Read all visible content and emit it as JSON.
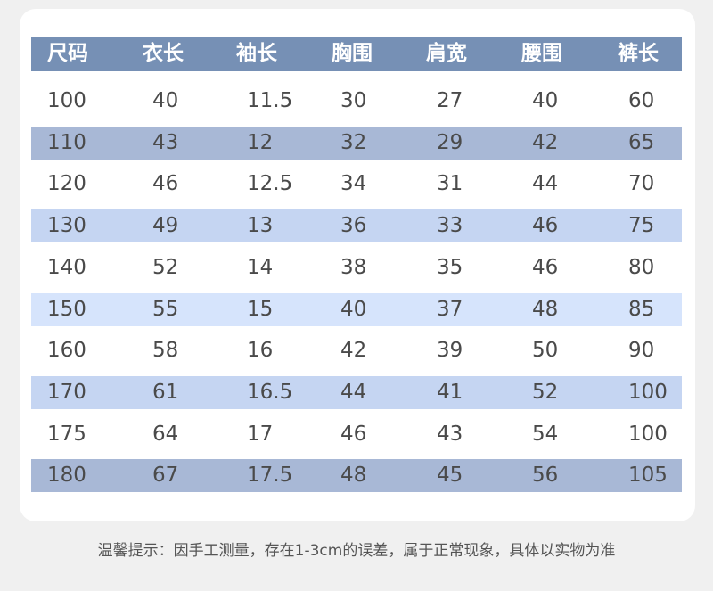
{
  "headers": [
    "尺码",
    "衣长",
    "袖长",
    "胸围",
    "肩宽",
    "腰围",
    "裤长"
  ],
  "rows": [
    [
      "100",
      "40",
      "11.5",
      "30",
      "27",
      "40",
      "60"
    ],
    [
      "110",
      "43",
      "12",
      "32",
      "29",
      "42",
      "65"
    ],
    [
      "120",
      "46",
      "12.5",
      "34",
      "31",
      "44",
      "70"
    ],
    [
      "130",
      "49",
      "13",
      "36",
      "33",
      "46",
      "75"
    ],
    [
      "140",
      "52",
      "14",
      "38",
      "35",
      "46",
      "80"
    ],
    [
      "150",
      "55",
      "15",
      "40",
      "37",
      "48",
      "85"
    ],
    [
      "160",
      "58",
      "16",
      "42",
      "39",
      "50",
      "90"
    ],
    [
      "170",
      "61",
      "16.5",
      "44",
      "41",
      "52",
      "100"
    ],
    [
      "175",
      "64",
      "17",
      "46",
      "43",
      "54",
      "100"
    ],
    [
      "180",
      "67",
      "17.5",
      "48",
      "45",
      "56",
      "105"
    ]
  ],
  "row_colors": [
    "#ffffff",
    "#a8b8d6",
    "#ffffff",
    "#c5d5f2",
    "#ffffff",
    "#d6e4fc",
    "#ffffff",
    "#c5d5f2",
    "#ffffff",
    "#a8b8d6"
  ],
  "header_color": "#7690b5",
  "note": "温馨提示：因手工测量，存在1-3cm的误差，属于正常现象，具体以实物为准"
}
